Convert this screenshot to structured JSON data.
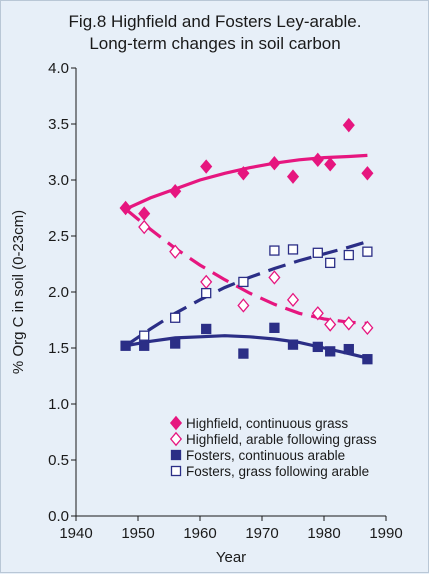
{
  "chart_data": {
    "type": "scatter",
    "title": [
      "Fig.8  Highfield and Fosters Ley-arable.",
      "Long-term changes in soil carbon"
    ],
    "xlabel": "Year",
    "ylabel": "% Org C in soil (0-23cm)",
    "xlim": [
      1940,
      1990
    ],
    "ylim": [
      0.0,
      4.0
    ],
    "x_ticks": [
      "1940",
      "1950",
      "1960",
      "1970",
      "1980",
      "1990"
    ],
    "y_ticks": [
      "0.0",
      "0.5",
      "1.0",
      "1.5",
      "2.0",
      "2.5",
      "3.0",
      "3.5",
      "4.0"
    ],
    "grid": false,
    "legend_position": "bottom-right",
    "series": [
      {
        "name": "Highfield, continuous grass",
        "marker": "diamond-filled",
        "color": "#e6167f",
        "x": [
          1948,
          1951,
          1956,
          1961,
          1967,
          1972,
          1975,
          1979,
          1981,
          1984,
          1987
        ],
        "y": [
          2.75,
          2.7,
          2.9,
          3.12,
          3.06,
          3.15,
          3.03,
          3.18,
          3.14,
          3.49,
          3.06
        ],
        "trend": {
          "style": "solid",
          "x": [
            1948,
            1952,
            1956,
            1960,
            1964,
            1968,
            1972,
            1976,
            1980,
            1984,
            1987
          ],
          "y": [
            2.74,
            2.84,
            2.92,
            3.0,
            3.06,
            3.11,
            3.15,
            3.18,
            3.2,
            3.21,
            3.22
          ]
        }
      },
      {
        "name": "Highfield, arable following grass",
        "marker": "diamond-open",
        "color": "#e6167f",
        "x": [
          1951,
          1956,
          1961,
          1967,
          1972,
          1975,
          1979,
          1981,
          1984,
          1987
        ],
        "y": [
          2.58,
          2.36,
          2.09,
          1.88,
          2.13,
          1.93,
          1.81,
          1.71,
          1.72,
          1.68
        ],
        "trend": {
          "style": "dashed",
          "x": [
            1948,
            1952,
            1956,
            1960,
            1964,
            1968,
            1972,
            1976,
            1980,
            1984,
            1987
          ],
          "y": [
            2.74,
            2.56,
            2.39,
            2.24,
            2.11,
            1.99,
            1.89,
            1.81,
            1.76,
            1.73,
            1.72
          ]
        }
      },
      {
        "name": "Fosters, continuous arable",
        "marker": "square-filled",
        "color": "#2b2e86",
        "x": [
          1948,
          1951,
          1956,
          1961,
          1967,
          1972,
          1975,
          1979,
          1981,
          1984,
          1987
        ],
        "y": [
          1.52,
          1.52,
          1.54,
          1.67,
          1.45,
          1.68,
          1.53,
          1.51,
          1.47,
          1.49,
          1.4
        ],
        "trend": {
          "style": "solid",
          "x": [
            1948,
            1952,
            1956,
            1960,
            1964,
            1968,
            1972,
            1976,
            1980,
            1984,
            1987
          ],
          "y": [
            1.52,
            1.56,
            1.59,
            1.6,
            1.61,
            1.6,
            1.58,
            1.55,
            1.5,
            1.45,
            1.41
          ]
        }
      },
      {
        "name": "Fosters, grass following arable",
        "marker": "square-open",
        "color": "#2b2e86",
        "x": [
          1951,
          1956,
          1961,
          1967,
          1972,
          1975,
          1979,
          1981,
          1984,
          1987
        ],
        "y": [
          1.61,
          1.77,
          1.99,
          2.09,
          2.37,
          2.38,
          2.35,
          2.26,
          2.33,
          2.36
        ],
        "trend": {
          "style": "dashed",
          "x": [
            1948,
            1952,
            1956,
            1960,
            1964,
            1968,
            1972,
            1976,
            1980,
            1984,
            1987
          ],
          "y": [
            1.52,
            1.67,
            1.81,
            1.93,
            2.04,
            2.13,
            2.21,
            2.28,
            2.34,
            2.4,
            2.45
          ]
        }
      }
    ]
  }
}
